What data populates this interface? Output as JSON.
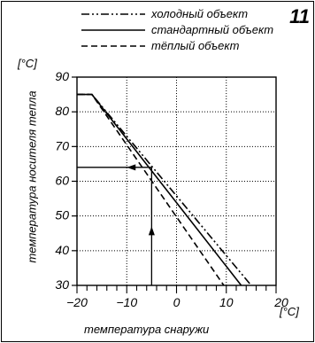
{
  "figure_number": "11",
  "chart_data": {
    "type": "line",
    "title": "",
    "xlabel": "температура снаружи",
    "ylabel": "температура носителя тепла",
    "x_unit": "[°C]",
    "y_unit": "[°C]",
    "xlim": [
      -20,
      20
    ],
    "ylim": [
      30,
      90
    ],
    "x_ticks": [
      -20,
      -10,
      0,
      10,
      20
    ],
    "y_ticks": [
      30,
      40,
      50,
      60,
      70,
      80,
      90
    ],
    "grid": true,
    "legend_position": "top",
    "series": [
      {
        "name": "холодный объект",
        "style": "dash-dot-dot",
        "x": [
          -20,
          -17,
          15
        ],
        "y": [
          85,
          85,
          30
        ]
      },
      {
        "name": "стандартный объект",
        "style": "solid",
        "x": [
          -20,
          -17,
          13
        ],
        "y": [
          85,
          85,
          30
        ]
      },
      {
        "name": "тёплый объект",
        "style": "dashed",
        "x": [
          -20,
          -17,
          9.5
        ],
        "y": [
          85,
          85,
          30
        ]
      }
    ],
    "annotation": {
      "x": -5,
      "y": 64
    }
  }
}
